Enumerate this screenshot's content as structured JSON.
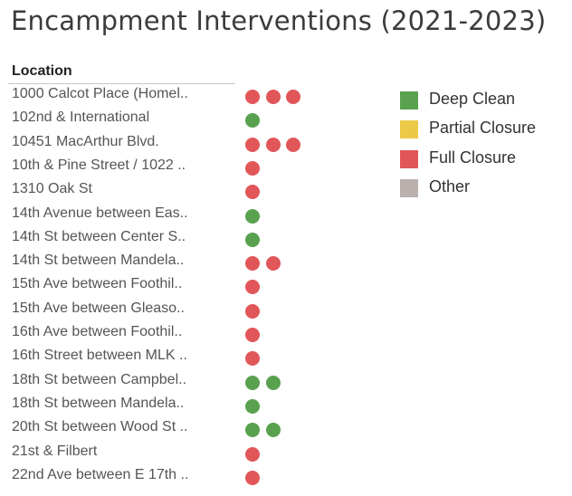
{
  "colors": {
    "deep_clean": "#59a14f",
    "partial_closure": "#edc948",
    "full_closure": "#e15759",
    "other": "#bab0ac"
  },
  "chart_data": {
    "type": "table",
    "title": "Encampment Interventions (2021-2023)",
    "row_header": "Location",
    "legend": {
      "placement": "right",
      "entries": [
        {
          "name": "Deep Clean",
          "color": "#59a14f"
        },
        {
          "name": "Partial Closure",
          "color": "#edc948"
        },
        {
          "name": "Full Closure",
          "color": "#e15759"
        },
        {
          "name": "Other",
          "color": "#bab0ac"
        }
      ]
    },
    "rows": [
      {
        "location": "1000 Calcot Place (Homel..",
        "interventions": [
          "Full Closure",
          "Full Closure",
          "Full Closure"
        ]
      },
      {
        "location": "102nd & International",
        "interventions": [
          "Deep Clean"
        ]
      },
      {
        "location": "10451 MacArthur Blvd.",
        "interventions": [
          "Full Closure",
          "Full Closure",
          "Full Closure"
        ]
      },
      {
        "location": "10th & Pine Street / 1022 ..",
        "interventions": [
          "Full Closure"
        ]
      },
      {
        "location": "1310 Oak St",
        "interventions": [
          "Full Closure"
        ]
      },
      {
        "location": "14th Avenue between Eas..",
        "interventions": [
          "Deep Clean"
        ]
      },
      {
        "location": "14th St between Center S..",
        "interventions": [
          "Deep Clean"
        ]
      },
      {
        "location": "14th St between Mandela..",
        "interventions": [
          "Full Closure",
          "Full Closure"
        ]
      },
      {
        "location": "15th Ave between Foothil..",
        "interventions": [
          "Full Closure"
        ]
      },
      {
        "location": "15th Ave between Gleaso..",
        "interventions": [
          "Full Closure"
        ]
      },
      {
        "location": "16th Ave between Foothil..",
        "interventions": [
          "Full Closure"
        ]
      },
      {
        "location": "16th Street between MLK ..",
        "interventions": [
          "Full Closure"
        ]
      },
      {
        "location": "18th St between Campbel..",
        "interventions": [
          "Deep Clean",
          "Deep Clean"
        ]
      },
      {
        "location": "18th St between Mandela..",
        "interventions": [
          "Deep Clean"
        ]
      },
      {
        "location": "20th St between Wood St ..",
        "interventions": [
          "Deep Clean",
          "Deep Clean"
        ]
      },
      {
        "location": "21st & Filbert",
        "interventions": [
          "Full Closure"
        ]
      },
      {
        "location": "22nd Ave between E 17th ..",
        "interventions": [
          "Full Closure"
        ]
      }
    ]
  }
}
